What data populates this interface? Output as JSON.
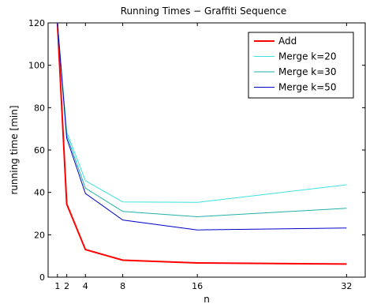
{
  "chart_data": {
    "type": "line",
    "title": "Running Times − Graffiti Sequence",
    "xlabel": "n",
    "ylabel": "running time [min]",
    "xlim": [
      0,
      34
    ],
    "ylim": [
      0,
      120
    ],
    "xticks": [
      1,
      2,
      4,
      8,
      16,
      32
    ],
    "yticks": [
      0,
      20,
      40,
      60,
      80,
      100,
      120
    ],
    "grid": false,
    "legend_position": "top-right",
    "series": [
      {
        "name": "Add",
        "color": "#ff0000",
        "width": 2,
        "x": [
          1,
          2,
          4,
          8,
          16,
          32
        ],
        "y": [
          120,
          34.5,
          13,
          8,
          6.7,
          6.2
        ]
      },
      {
        "name": "Merge k=20",
        "color": "#40e0e0",
        "width": 1,
        "x": [
          1,
          2,
          4,
          8,
          16,
          32
        ],
        "y": [
          120,
          68.5,
          45.5,
          35.5,
          35.3,
          43.6
        ]
      },
      {
        "name": "Merge k=30",
        "color": "#20b2aa",
        "width": 1,
        "x": [
          1,
          2,
          4,
          8,
          16,
          32
        ],
        "y": [
          120,
          67,
          42,
          31,
          28.5,
          32.5
        ]
      },
      {
        "name": "Merge k=50",
        "color": "#0000c8",
        "width": 1,
        "x": [
          1,
          2,
          4,
          8,
          16,
          32
        ],
        "y": [
          120,
          65.5,
          39.5,
          27,
          22.3,
          23.2
        ]
      }
    ]
  }
}
